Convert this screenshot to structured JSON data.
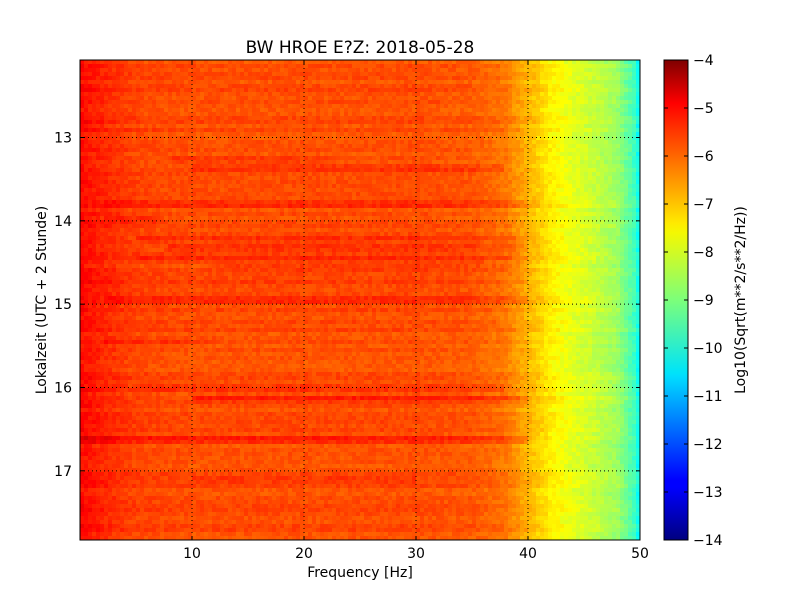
{
  "chart_data": {
    "type": "heatmap",
    "title": "BW HROE E?Z: 2018-05-28",
    "xlabel": "Frequency [Hz]",
    "ylabel": "Lokalzeit (UTC + 2 Stunde)",
    "colorbar_label": "Log10(Sqrt(m**2/s**2/Hz))",
    "xlim": [
      0,
      50
    ],
    "ylim": [
      12.07,
      17.83
    ],
    "y_inverted": true,
    "x_ticks": [
      10,
      20,
      30,
      40,
      50
    ],
    "x_tick_labels": [
      "10",
      "20",
      "30",
      "40",
      "50"
    ],
    "y_ticks": [
      13,
      14,
      15,
      16,
      17
    ],
    "y_tick_labels": [
      "13",
      "14",
      "15",
      "16",
      "17"
    ],
    "colorbar_ticks": [
      -4,
      -5,
      -6,
      -7,
      -8,
      -9,
      -10,
      -11,
      -12,
      -13,
      -14
    ],
    "colorbar_tick_labels": [
      "−4",
      "−5",
      "−6",
      "−7",
      "−8",
      "−9",
      "−10",
      "−11",
      "−12",
      "−13",
      "−14"
    ],
    "clim": [
      -14,
      -4
    ],
    "colormap": "jet",
    "grid": true,
    "frequency_profile": [
      {
        "f": 0,
        "v": -5.3
      },
      {
        "f": 2,
        "v": -5.6
      },
      {
        "f": 5,
        "v": -5.9
      },
      {
        "f": 10,
        "v": -6.0
      },
      {
        "f": 20,
        "v": -6.0
      },
      {
        "f": 30,
        "v": -6.0
      },
      {
        "f": 35,
        "v": -6.1
      },
      {
        "f": 38,
        "v": -6.4
      },
      {
        "f": 40,
        "v": -7.0
      },
      {
        "f": 42,
        "v": -7.6
      },
      {
        "f": 44,
        "v": -8.0
      },
      {
        "f": 46,
        "v": -8.3
      },
      {
        "f": 48,
        "v": -8.7
      },
      {
        "f": 49.5,
        "v": -9.6
      },
      {
        "f": 50,
        "v": -10.3
      }
    ],
    "bands": [
      {
        "t": 13.27,
        "f0": 8,
        "f1": 22,
        "d": 0.3
      },
      {
        "t": 13.37,
        "f0": 10,
        "f1": 38,
        "d": 0.5
      },
      {
        "t": 13.37,
        "f0": 45,
        "f1": 50,
        "d": 0.3
      },
      {
        "t": 13.8,
        "f0": 2,
        "f1": 50,
        "d": 0.55
      },
      {
        "t": 13.98,
        "f0": 2,
        "f1": 7,
        "d": 0.4
      },
      {
        "t": 14.2,
        "f0": 5,
        "f1": 46,
        "d": 0.4
      },
      {
        "t": 14.32,
        "f0": 8,
        "f1": 45,
        "d": 0.5
      },
      {
        "t": 14.45,
        "f0": 5,
        "f1": 46,
        "d": 0.4
      },
      {
        "t": 14.55,
        "f0": 12,
        "f1": 40,
        "d": 0.3
      },
      {
        "t": 14.72,
        "f0": 0,
        "f1": 50,
        "d": 0.35
      },
      {
        "t": 14.95,
        "f0": 2,
        "f1": 46,
        "d": 0.45
      },
      {
        "t": 15.45,
        "f0": 2,
        "f1": 12,
        "d": 0.25
      },
      {
        "t": 16.0,
        "f0": 5,
        "f1": 38,
        "d": 0.3
      },
      {
        "t": 16.13,
        "f0": 10,
        "f1": 50,
        "d": 0.5
      },
      {
        "t": 16.63,
        "f0": 0,
        "f1": 40,
        "d": 0.7
      },
      {
        "t": 17.1,
        "f0": 10,
        "f1": 30,
        "d": 0.2
      }
    ]
  }
}
